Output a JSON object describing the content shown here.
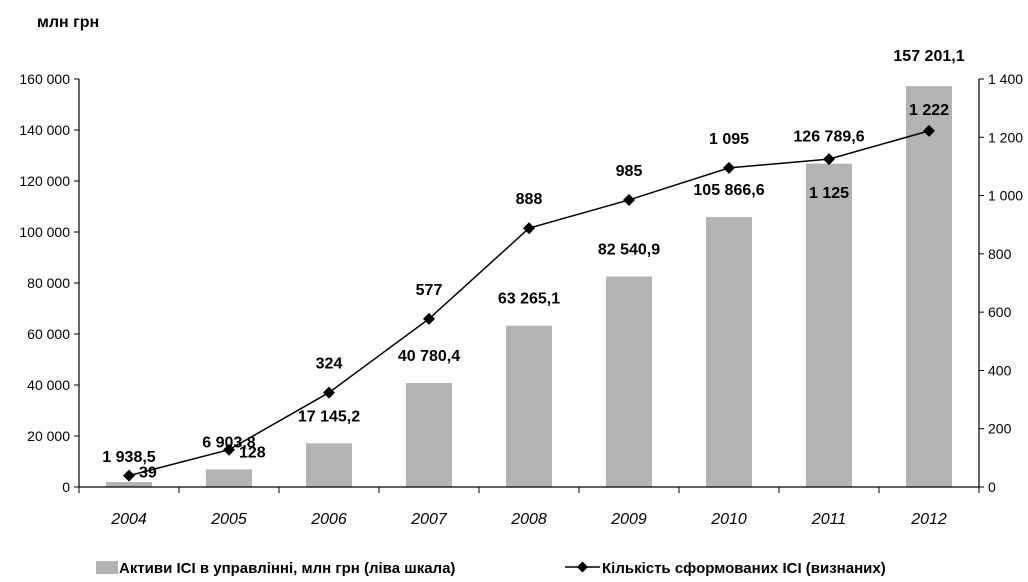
{
  "chart_data": {
    "type": "bar",
    "unit_label": "млн грн",
    "categories": [
      "2004",
      "2005",
      "2006",
      "2007",
      "2008",
      "2009",
      "2010",
      "2011",
      "2012"
    ],
    "series": [
      {
        "name": "Активи ІСІ в управлінні, млн грн (ліва шкала)",
        "type": "bar",
        "axis": "left",
        "color": "#b3b3b3",
        "values": [
          1938.5,
          6903.8,
          17145.2,
          40780.4,
          63265.1,
          82540.9,
          105866.6,
          126789.6,
          157201.1
        ],
        "labels": [
          "1 938,5",
          "6 903,8",
          "17 145,2",
          "40 780,4",
          "63 265,1",
          "82 540,9",
          "105 866,6",
          "126 789,6",
          "157 201,1"
        ]
      },
      {
        "name": "Кількість сформованих ІСІ (визнаних)",
        "type": "line",
        "axis": "right",
        "color": "#000000",
        "marker": "diamond",
        "values": [
          39,
          128,
          324,
          577,
          888,
          985,
          1095,
          1125,
          1222
        ],
        "labels": [
          "39",
          "128",
          "324",
          "577",
          "888",
          "985",
          "1 095",
          "1 125",
          "1 222"
        ]
      }
    ],
    "y_left": {
      "range": [
        0,
        160000
      ],
      "ticks": [
        0,
        20000,
        40000,
        60000,
        80000,
        100000,
        120000,
        140000,
        160000
      ],
      "tick_labels": [
        "0",
        "20 000",
        "40 000",
        "60 000",
        "80 000",
        "100 000",
        "120 000",
        "140 000",
        "160 000"
      ]
    },
    "y_right": {
      "range": [
        0,
        1400
      ],
      "ticks": [
        0,
        200,
        400,
        600,
        800,
        1000,
        1200,
        1400
      ],
      "tick_labels": [
        "0",
        "200",
        "400",
        "600",
        "800",
        "1 000",
        "1 200",
        "1 400"
      ]
    },
    "grid": false,
    "legend_position": "bottom"
  }
}
